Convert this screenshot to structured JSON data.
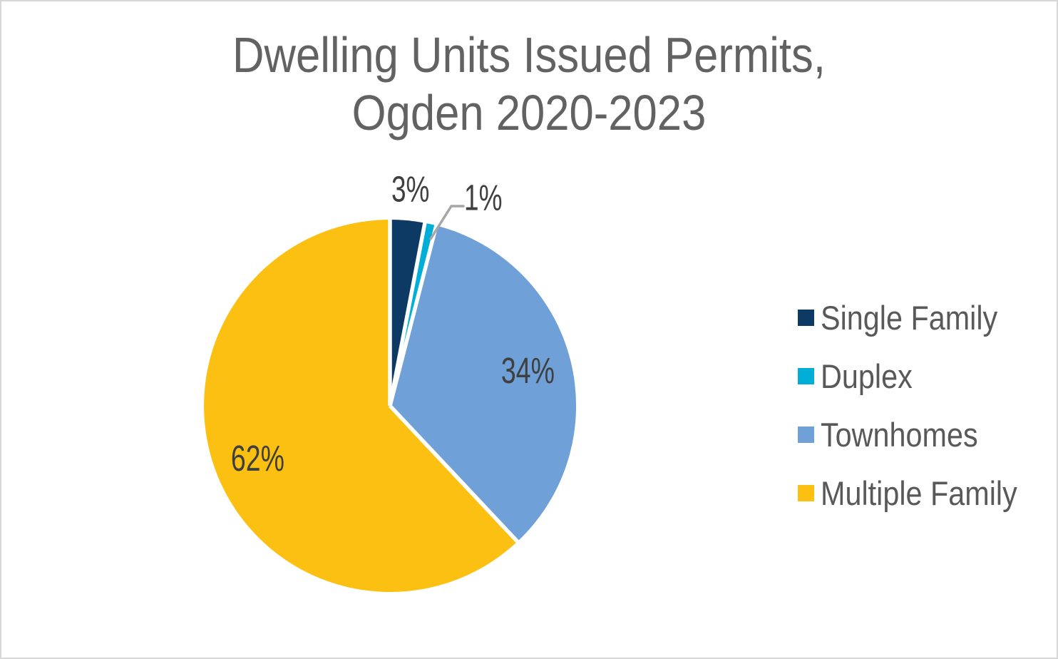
{
  "title": {
    "text": "Dwelling Units Issued Permits,\nOgden 2020-2023"
  },
  "chart_data": {
    "type": "pie",
    "title": "Dwelling Units Issued Permits, Ogden 2020-2023",
    "value_format": "percent",
    "start_angle_deg": 0,
    "direction": "clockwise",
    "legend_position": "right",
    "separator_color": "#ffffff",
    "leader_line_color": "#a6a6a6",
    "slices": [
      {
        "name": "Single Family",
        "value": 3,
        "pct_label": "3%",
        "color": "#0c3a64",
        "label_placement": "outside"
      },
      {
        "name": "Duplex",
        "value": 1,
        "pct_label": "1%",
        "color": "#00aed8",
        "label_placement": "callout"
      },
      {
        "name": "Townhomes",
        "value": 34,
        "pct_label": "34%",
        "color": "#6fa0d7",
        "label_placement": "inside"
      },
      {
        "name": "Multiple Family",
        "value": 62,
        "pct_label": "62%",
        "color": "#fcc013",
        "label_placement": "inside"
      }
    ]
  }
}
